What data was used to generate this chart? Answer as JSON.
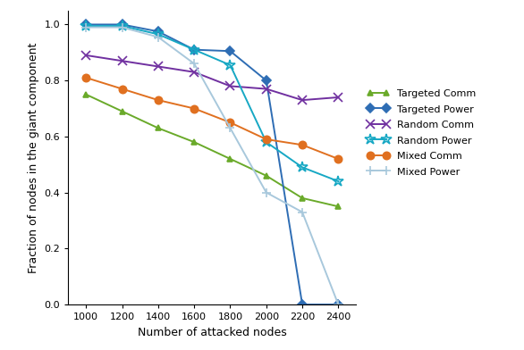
{
  "x": [
    1000,
    1200,
    1400,
    1600,
    1800,
    2000,
    2200,
    2400
  ],
  "targeted_comm": [
    0.75,
    0.69,
    0.63,
    0.58,
    0.52,
    0.46,
    0.38,
    0.35
  ],
  "targeted_power": [
    1.0,
    1.0,
    0.975,
    0.91,
    0.905,
    0.8,
    0.0,
    0.0
  ],
  "random_comm": [
    0.89,
    0.87,
    0.85,
    0.83,
    0.78,
    0.77,
    0.73,
    0.74
  ],
  "random_power": [
    0.995,
    0.995,
    0.965,
    0.91,
    0.855,
    0.58,
    0.49,
    0.44
  ],
  "mixed_comm": [
    0.81,
    0.77,
    0.73,
    0.7,
    0.65,
    0.59,
    0.57,
    0.52
  ],
  "mixed_power": [
    0.99,
    0.99,
    0.955,
    0.86,
    0.63,
    0.4,
    0.33,
    0.0
  ],
  "colors": {
    "targeted_comm": "#6aaa2a",
    "targeted_power": "#2e6db4",
    "random_comm": "#7030a0",
    "random_power": "#17a8c4",
    "mixed_comm": "#e07020",
    "mixed_power": "#a8c8dc"
  },
  "markers": {
    "targeted_comm": "^",
    "targeted_power": "D",
    "random_comm": "x",
    "random_power": "*",
    "mixed_comm": "o",
    "mixed_power": "+"
  },
  "markersizes": {
    "targeted_comm": 5,
    "targeted_power": 5,
    "random_comm": 7,
    "random_power": 9,
    "mixed_comm": 6,
    "mixed_power": 7
  },
  "labels": {
    "targeted_comm": "Targeted Comm",
    "targeted_power": "Targeted Power",
    "random_comm": "Random Comm",
    "random_power": "Random Power",
    "mixed_comm": "Mixed Comm",
    "mixed_power": "Mixed Power"
  },
  "xlabel": "Number of attacked nodes",
  "ylabel": "Fraction of nodes in the giant component",
  "xlim": [
    900,
    2500
  ],
  "ylim": [
    0,
    1.05
  ],
  "xticks": [
    1000,
    1200,
    1400,
    1600,
    1800,
    2000,
    2200,
    2400
  ],
  "yticks": [
    0,
    0.2,
    0.4,
    0.6,
    0.8,
    1.0
  ]
}
